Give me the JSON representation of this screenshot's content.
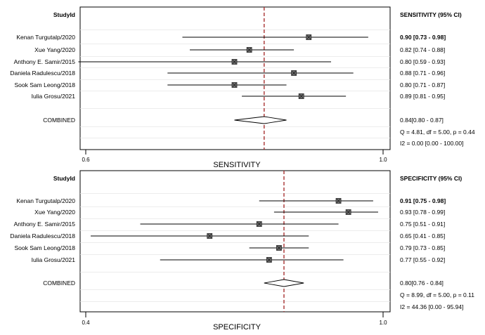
{
  "chart_data": [
    {
      "type": "forest",
      "study_header": "StudyId",
      "ci_header": "SENSITIVITY (95% CI)",
      "xlabel": "SENSITIVITY",
      "xlim": [
        0.6,
        1.0
      ],
      "xticks": [
        "0.6",
        "1.0"
      ],
      "reference_line": 0.84,
      "grid": true,
      "studies": [
        {
          "name": "Kenan Turgutalp/2020",
          "estimate": 0.9,
          "lower": 0.73,
          "upper": 0.98,
          "ci_text": "0.90 [0.73 - 0.98]"
        },
        {
          "name": "Xue Yang/2020",
          "estimate": 0.82,
          "lower": 0.74,
          "upper": 0.88,
          "ci_text": "0.82 [0.74 - 0.88]"
        },
        {
          "name": "Anthony E. Samir/2015",
          "estimate": 0.8,
          "lower": 0.59,
          "upper": 0.93,
          "ci_text": "0.80 [0.59 - 0.93]"
        },
        {
          "name": "Daniela Radulescu/2018",
          "estimate": 0.88,
          "lower": 0.71,
          "upper": 0.96,
          "ci_text": "0.88 [0.71 - 0.96]"
        },
        {
          "name": "Sook Sam Leong/2018",
          "estimate": 0.8,
          "lower": 0.71,
          "upper": 0.87,
          "ci_text": "0.80 [0.71 - 0.87]"
        },
        {
          "name": "Iulia Grosu/2021",
          "estimate": 0.89,
          "lower": 0.81,
          "upper": 0.95,
          "ci_text": "0.89 [0.81 - 0.95]"
        }
      ],
      "combined": {
        "name": "COMBINED",
        "estimate": 0.84,
        "lower": 0.8,
        "upper": 0.87,
        "ci_text": "0.84[0.80 - 0.87]"
      },
      "heterogeneity": [
        "Q =  4.81, df = 5.00, p =  0.44",
        "I2 = 0.00 [0.00 - 100.00]"
      ]
    },
    {
      "type": "forest",
      "study_header": "StudyId",
      "ci_header": "SPECIFICITY (95% CI)",
      "xlabel": "SPECIFICITY",
      "xlim": [
        0.4,
        1.0
      ],
      "xticks": [
        "0.4",
        "1.0"
      ],
      "reference_line": 0.8,
      "grid": true,
      "studies": [
        {
          "name": "Kenan Turgutalp/2020",
          "estimate": 0.91,
          "lower": 0.75,
          "upper": 0.98,
          "ci_text": "0.91 [0.75 - 0.98]"
        },
        {
          "name": "Xue Yang/2020",
          "estimate": 0.93,
          "lower": 0.78,
          "upper": 0.99,
          "ci_text": "0.93 [0.78 - 0.99]"
        },
        {
          "name": "Anthony E. Samir/2015",
          "estimate": 0.75,
          "lower": 0.51,
          "upper": 0.91,
          "ci_text": "0.75 [0.51 - 0.91]"
        },
        {
          "name": "Daniela Radulescu/2018",
          "estimate": 0.65,
          "lower": 0.41,
          "upper": 0.85,
          "ci_text": "0.65 [0.41 - 0.85]"
        },
        {
          "name": "Sook Sam Leong/2018",
          "estimate": 0.79,
          "lower": 0.73,
          "upper": 0.85,
          "ci_text": "0.79 [0.73 - 0.85]"
        },
        {
          "name": "Iulia Grosu/2021",
          "estimate": 0.77,
          "lower": 0.55,
          "upper": 0.92,
          "ci_text": "0.77 [0.55 - 0.92]"
        }
      ],
      "combined": {
        "name": "COMBINED",
        "estimate": 0.8,
        "lower": 0.76,
        "upper": 0.84,
        "ci_text": "0.80[0.76 - 0.84]"
      },
      "heterogeneity": [
        "Q =  8.99, df = 5.00, p =  0.11",
        "I2 = 44.36 [0.00 - 95.94]"
      ]
    }
  ]
}
